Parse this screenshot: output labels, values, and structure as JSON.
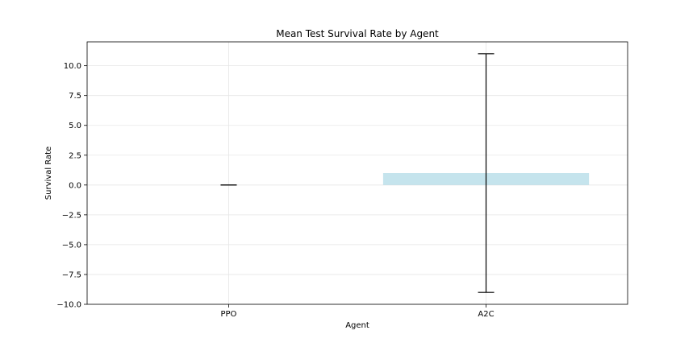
{
  "chart_data": {
    "type": "bar",
    "title": "Mean Test Survival Rate by Agent",
    "xlabel": "Agent",
    "ylabel": "Survival Rate",
    "categories": [
      "PPO",
      "A2C"
    ],
    "values": [
      0.0,
      1.0
    ],
    "error": [
      0.0,
      10.0
    ],
    "ylim": [
      -10.0,
      12.0
    ],
    "yticks": [
      -10.0,
      -7.5,
      -5.0,
      -2.5,
      0.0,
      2.5,
      5.0,
      7.5,
      10.0
    ],
    "ytick_labels": [
      "−10.0",
      "−7.5",
      "−5.0",
      "−2.5",
      "0.0",
      "2.5",
      "5.0",
      "7.5",
      "10.0"
    ],
    "grid": true,
    "bar_color": "#add8e6",
    "bar_opacity": 0.7,
    "error_color": "#000000",
    "grid_color": "#e6e6e6"
  }
}
